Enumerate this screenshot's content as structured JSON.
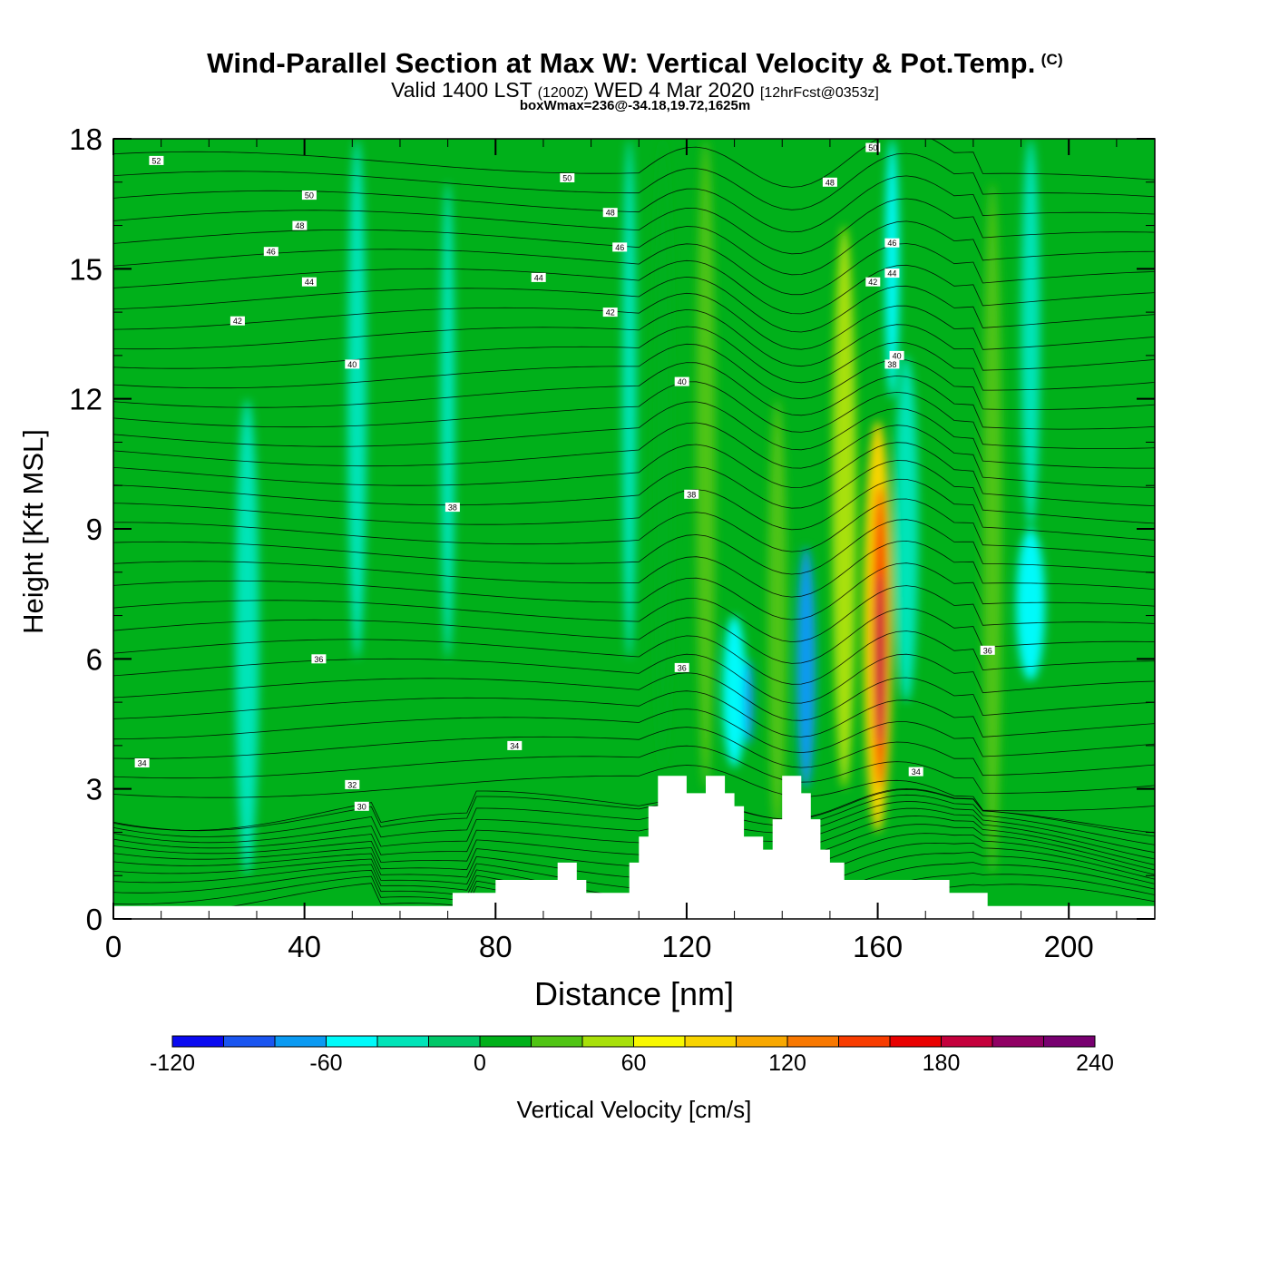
{
  "header": {
    "title": "Wind-Parallel Section at Max W: Vertical Velocity & Pot.Temp.",
    "copyright": "(C)",
    "valid_prefix": "Valid 1400 LST",
    "valid_utc": "(1200Z)",
    "valid_date": "WED 4 Mar 2020",
    "forecast": "[12hrFcst@0353z]",
    "box_info": "boxWmax=236@-34.18,19.72,1625m"
  },
  "chart_data": {
    "type": "heatmap",
    "xlabel": "Distance [nm]",
    "ylabel": "Height [Kft MSL]",
    "xlim": [
      0,
      218
    ],
    "ylim": [
      0,
      18
    ],
    "x_ticks": [
      "0",
      "40",
      "80",
      "120",
      "160",
      "200"
    ],
    "x_tick_values": [
      0,
      40,
      80,
      120,
      160,
      200
    ],
    "y_ticks": [
      "0",
      "3",
      "6",
      "9",
      "12",
      "15",
      "18"
    ],
    "y_tick_values": [
      0,
      3,
      6,
      9,
      12,
      15,
      18
    ],
    "colorbar": {
      "label": "Vertical Velocity [cm/s]",
      "ticks": [
        "-120",
        "-60",
        "0",
        "60",
        "120",
        "180",
        "240"
      ],
      "levels": [
        -120,
        -100,
        -80,
        -60,
        -40,
        -20,
        0,
        20,
        40,
        60,
        80,
        100,
        120,
        140,
        160,
        180,
        200,
        220,
        240
      ],
      "colors": [
        "#0a0af0",
        "#1a55f0",
        "#0a9af2",
        "#00fafa",
        "#00e4b8",
        "#00c768",
        "#00b01a",
        "#50c414",
        "#a8e00a",
        "#f8f800",
        "#f8d400",
        "#f8a800",
        "#f87800",
        "#f83c00",
        "#e80000",
        "#c4003c",
        "#900064",
        "#780070"
      ]
    },
    "background_value": 0,
    "vertical_velocity_features": [
      {
        "x": 28,
        "w": 5,
        "ybot": 1,
        "ytop": 12,
        "value": -25
      },
      {
        "x": 51,
        "w": 4,
        "ybot": 6,
        "ytop": 18,
        "value": -25
      },
      {
        "x": 70,
        "w": 3,
        "ybot": 6,
        "ytop": 17,
        "value": -25
      },
      {
        "x": 108,
        "w": 3,
        "ybot": 6,
        "ytop": 18,
        "value": -25
      },
      {
        "x": 115,
        "w": 4,
        "ybot": 3.5,
        "ytop": 18,
        "value": 15
      },
      {
        "x": 124,
        "w": 4,
        "ybot": 3,
        "ytop": 18,
        "value": 20
      },
      {
        "x": 130,
        "w": 5,
        "ybot": 3.5,
        "ytop": 7,
        "value": -50
      },
      {
        "x": 133,
        "w": 2,
        "ybot": 4,
        "ytop": 6,
        "value": -80
      },
      {
        "x": 139,
        "w": 4,
        "ybot": 2,
        "ytop": 12,
        "value": 30
      },
      {
        "x": 145,
        "w": 4,
        "ybot": 3,
        "ytop": 8.6,
        "value": -70
      },
      {
        "x": 153,
        "w": 5,
        "ybot": 3,
        "ytop": 16,
        "value": 45
      },
      {
        "x": 160,
        "w": 6,
        "ybot": 2,
        "ytop": 11.5,
        "value": 90
      },
      {
        "x": 160.5,
        "w": 3,
        "ybot": 3,
        "ytop": 10,
        "value": 150
      },
      {
        "x": 160.5,
        "w": 2,
        "ybot": 4,
        "ytop": 8,
        "value": 190
      },
      {
        "x": 166,
        "w": 5,
        "ybot": 5,
        "ytop": 13,
        "value": -40
      },
      {
        "x": 163,
        "w": 3,
        "ybot": 12,
        "ytop": 18,
        "value": -60
      },
      {
        "x": 184,
        "w": 4,
        "ybot": 1,
        "ytop": 17,
        "value": 30
      },
      {
        "x": 192,
        "w": 6,
        "ybot": 5.5,
        "ytop": 9,
        "value": -50
      },
      {
        "x": 192,
        "w": 4,
        "ybot": 9,
        "ytop": 18,
        "value": -25
      }
    ],
    "terrain": [
      [
        0,
        0.3
      ],
      [
        71,
        0.3
      ],
      [
        71,
        0.6
      ],
      [
        80,
        0.6
      ],
      [
        80,
        0.9
      ],
      [
        93,
        0.9
      ],
      [
        93,
        1.3
      ],
      [
        97,
        1.3
      ],
      [
        97,
        0.9
      ],
      [
        99,
        0.9
      ],
      [
        99,
        0.6
      ],
      [
        108,
        0.6
      ],
      [
        108,
        1.3
      ],
      [
        110,
        1.3
      ],
      [
        110,
        1.9
      ],
      [
        112,
        1.9
      ],
      [
        112,
        2.6
      ],
      [
        114,
        2.6
      ],
      [
        114,
        3.3
      ],
      [
        120,
        3.3
      ],
      [
        120,
        2.9
      ],
      [
        124,
        2.9
      ],
      [
        124,
        3.3
      ],
      [
        128,
        3.3
      ],
      [
        128,
        2.9
      ],
      [
        130,
        2.9
      ],
      [
        130,
        2.6
      ],
      [
        132,
        2.6
      ],
      [
        132,
        1.9
      ],
      [
        136,
        1.9
      ],
      [
        136,
        1.6
      ],
      [
        138,
        1.6
      ],
      [
        138,
        2.3
      ],
      [
        140,
        2.3
      ],
      [
        140,
        3.3
      ],
      [
        144,
        3.3
      ],
      [
        144,
        2.9
      ],
      [
        146,
        2.9
      ],
      [
        146,
        2.3
      ],
      [
        148,
        2.3
      ],
      [
        148,
        1.6
      ],
      [
        150,
        1.6
      ],
      [
        150,
        1.3
      ],
      [
        153,
        1.3
      ],
      [
        153,
        0.9
      ],
      [
        175,
        0.9
      ],
      [
        175,
        0.6
      ],
      [
        183,
        0.6
      ],
      [
        183,
        0.3
      ],
      [
        218,
        0.3
      ]
    ],
    "theta_contour_labels": [
      {
        "x": 9,
        "y": 17.5,
        "text": "52"
      },
      {
        "x": 41,
        "y": 16.7,
        "text": "50"
      },
      {
        "x": 39,
        "y": 16.0,
        "text": "48"
      },
      {
        "x": 33,
        "y": 15.4,
        "text": "46"
      },
      {
        "x": 41,
        "y": 14.7,
        "text": "44"
      },
      {
        "x": 26,
        "y": 13.8,
        "text": "42"
      },
      {
        "x": 50,
        "y": 12.8,
        "text": "40"
      },
      {
        "x": 71,
        "y": 9.5,
        "text": "38"
      },
      {
        "x": 43,
        "y": 6.0,
        "text": "36"
      },
      {
        "x": 84,
        "y": 4.0,
        "text": "34"
      },
      {
        "x": 6,
        "y": 3.6,
        "text": "34"
      },
      {
        "x": 50,
        "y": 3.1,
        "text": "32"
      },
      {
        "x": 52,
        "y": 2.6,
        "text": "30"
      },
      {
        "x": 95,
        "y": 17.1,
        "text": "50"
      },
      {
        "x": 104,
        "y": 16.3,
        "text": "48"
      },
      {
        "x": 106,
        "y": 15.5,
        "text": "46"
      },
      {
        "x": 89,
        "y": 14.8,
        "text": "44"
      },
      {
        "x": 104,
        "y": 14.0,
        "text": "42"
      },
      {
        "x": 119,
        "y": 12.4,
        "text": "40"
      },
      {
        "x": 121,
        "y": 9.8,
        "text": "38"
      },
      {
        "x": 119,
        "y": 5.8,
        "text": "36"
      },
      {
        "x": 150,
        "y": 17.0,
        "text": "48"
      },
      {
        "x": 159,
        "y": 14.7,
        "text": "42"
      },
      {
        "x": 163,
        "y": 12.8,
        "text": "38"
      },
      {
        "x": 183,
        "y": 6.2,
        "text": "36"
      },
      {
        "x": 168,
        "y": 3.4,
        "text": "34"
      },
      {
        "x": 159,
        "y": 17.8,
        "text": "50"
      },
      {
        "x": 163,
        "y": 15.6,
        "text": "46"
      },
      {
        "x": 163,
        "y": 14.9,
        "text": "44"
      },
      {
        "x": 164,
        "y": 13.0,
        "text": "40"
      }
    ]
  }
}
